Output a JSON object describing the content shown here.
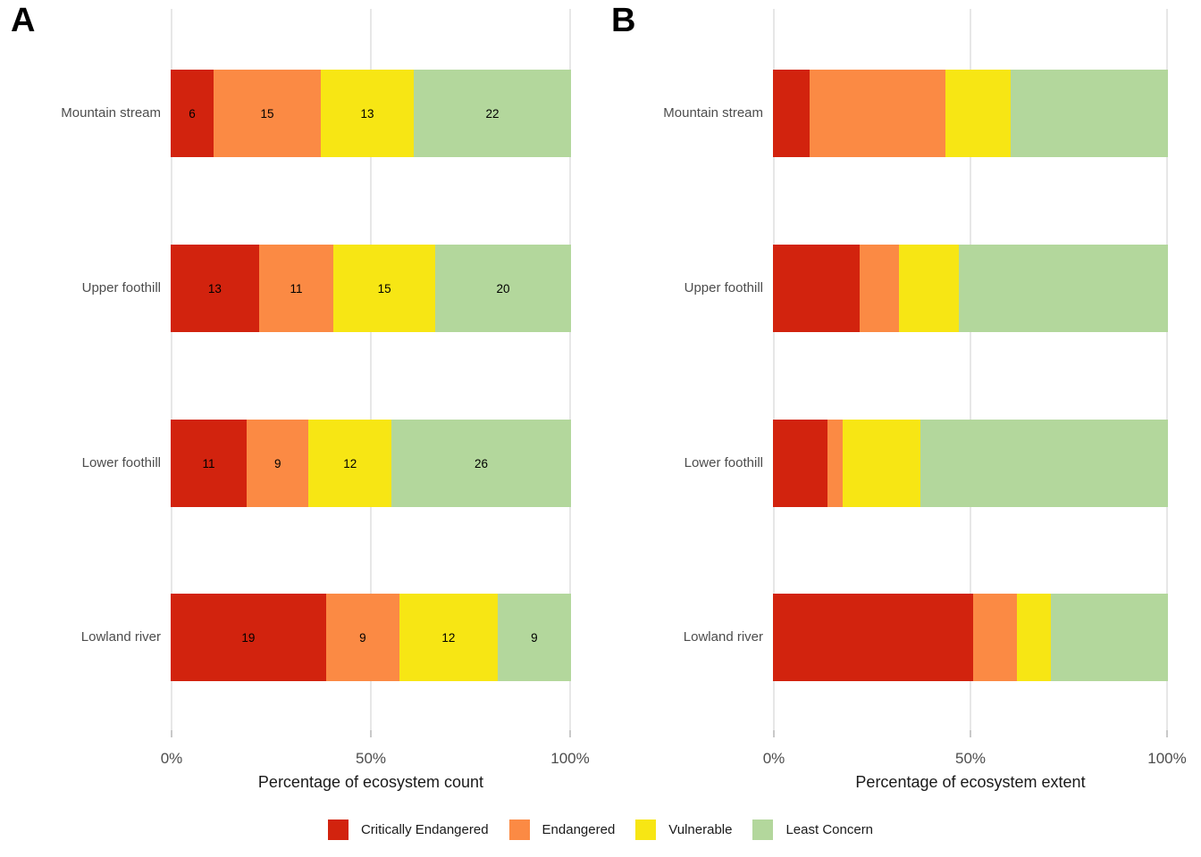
{
  "chart_data": [
    {
      "panel": "A",
      "type": "bar",
      "orientation": "horizontal",
      "stacked": true,
      "normalized": "each bar scaled to 100%",
      "categories": [
        "Mountain stream",
        "Upper foothill",
        "Lower foothill",
        "Lowland river"
      ],
      "series": [
        {
          "name": "Critically Endangered",
          "values": [
            6,
            13,
            11,
            19
          ]
        },
        {
          "name": "Endangered",
          "values": [
            15,
            11,
            9,
            9
          ]
        },
        {
          "name": "Vulnerable",
          "values": [
            13,
            15,
            12,
            12
          ]
        },
        {
          "name": "Least Concern",
          "values": [
            22,
            20,
            26,
            9
          ]
        }
      ],
      "value_labels_shown": true,
      "xlabel": "Percentage of ecosystem count",
      "x_ticks": [
        "0%",
        "50%",
        "100%"
      ],
      "xlim": [
        0,
        100
      ],
      "grid": "vertical major gridlines at 0%, 50%, 100%"
    },
    {
      "panel": "B",
      "type": "bar",
      "orientation": "horizontal",
      "stacked": true,
      "normalized": "each bar scaled to 100%",
      "categories": [
        "Mountain stream",
        "Upper foothill",
        "Lower foothill",
        "Lowland river"
      ],
      "series": [
        {
          "name": "Critically Endangered",
          "values": [
            9.3,
            21.9,
            13.9,
            50.7
          ]
        },
        {
          "name": "Endangered",
          "values": [
            34.4,
            10.0,
            3.8,
            11.0
          ]
        },
        {
          "name": "Vulnerable",
          "values": [
            16.4,
            15.2,
            19.6,
            8.7
          ]
        },
        {
          "name": "Least Concern",
          "values": [
            39.9,
            52.9,
            62.7,
            29.6
          ]
        }
      ],
      "value_labels_shown": false,
      "xlabel": "Percentage of ecosystem extent",
      "x_ticks": [
        "0%",
        "50%",
        "100%"
      ],
      "xlim": [
        0,
        100
      ],
      "grid": "vertical major gridlines at 0%, 50%, 100%"
    }
  ],
  "legend": {
    "position": "bottom-center",
    "entries": [
      {
        "label": "Critically Endangered",
        "color": "#d2230e"
      },
      {
        "label": "Endangered",
        "color": "#fb8a44"
      },
      {
        "label": "Vulnerable",
        "color": "#f7e614"
      },
      {
        "label": "Least Concern",
        "color": "#b3d79c"
      }
    ]
  }
}
